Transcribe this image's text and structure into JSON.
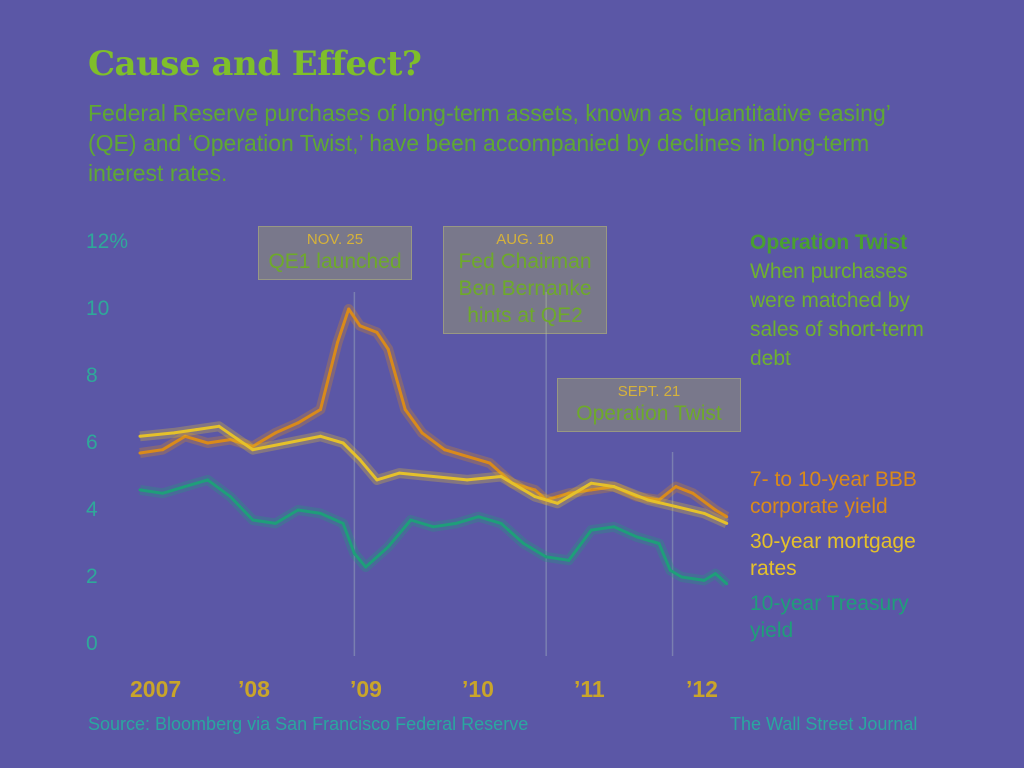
{
  "header": {
    "title": "Cause and Effect?",
    "subtitle": "Federal Reserve purchases of long-term assets, known as ‘quantitative easing’ (QE) and ‘Operation Twist,’ have been accompanied by declines in long-term interest rates."
  },
  "annotations": [
    {
      "date": "NOV. 25",
      "text": "QE1 launched"
    },
    {
      "date": "AUG. 10",
      "text": "Fed Chairman Ben Bernanke hints at QE2"
    },
    {
      "date": "SEPT. 21",
      "text": "Operation Twist"
    }
  ],
  "side_note": {
    "heading": "Operation Twist",
    "text": "When purchases were matched by sales of short-term debt"
  },
  "footer": {
    "source": "Source: Bloomberg via San Francisco Federal Reserve",
    "credit": "The Wall Street Journal"
  },
  "colors": {
    "bbb": "#d98a1a",
    "mortgage": "#e5c12a",
    "treasury": "#1f9e7a"
  },
  "chart_data": {
    "type": "line",
    "title": "Cause and Effect?",
    "ylim": [
      0,
      12
    ],
    "yticks": [
      0,
      2,
      4,
      6,
      8,
      10,
      12
    ],
    "ytick_labels": [
      "0",
      "2",
      "4",
      "6",
      "8",
      "10",
      "12%"
    ],
    "xlim": [
      2007.0,
      2012.3
    ],
    "xticks": [
      2007,
      2008,
      2009,
      2010,
      2011,
      2012
    ],
    "xtick_labels": [
      "2007",
      "’08",
      "’09",
      "’10",
      "’11",
      "’12"
    ],
    "grid": false,
    "legend": "right",
    "events": [
      {
        "x": 2008.9,
        "label": "QE1 launched"
      },
      {
        "x": 2010.6,
        "label": "Fed Chairman Ben Bernanke hints at QE2"
      },
      {
        "x": 2011.72,
        "label": "Operation Twist"
      }
    ],
    "series": [
      {
        "name": "7- to 10-year BBB corporate yield",
        "x": [
          2007.0,
          2007.2,
          2007.4,
          2007.6,
          2007.8,
          2008.0,
          2008.2,
          2008.4,
          2008.6,
          2008.75,
          2008.85,
          2008.95,
          2009.1,
          2009.2,
          2009.35,
          2009.5,
          2009.7,
          2009.9,
          2010.1,
          2010.3,
          2010.5,
          2010.6,
          2010.8,
          2011.0,
          2011.2,
          2011.4,
          2011.6,
          2011.75,
          2011.9,
          2012.1,
          2012.2
        ],
        "values": [
          5.7,
          5.8,
          6.2,
          6.0,
          6.1,
          5.9,
          6.3,
          6.6,
          7.0,
          9.0,
          10.0,
          9.5,
          9.3,
          8.8,
          7.0,
          6.3,
          5.8,
          5.6,
          5.4,
          4.8,
          4.6,
          4.3,
          4.5,
          4.6,
          4.7,
          4.4,
          4.3,
          4.7,
          4.5,
          4.0,
          3.8
        ]
      },
      {
        "name": "30-year mortgage rates",
        "x": [
          2007.0,
          2007.3,
          2007.5,
          2007.7,
          2008.0,
          2008.3,
          2008.6,
          2008.8,
          2008.95,
          2009.1,
          2009.3,
          2009.6,
          2009.9,
          2010.2,
          2010.5,
          2010.7,
          2011.0,
          2011.2,
          2011.5,
          2011.75,
          2012.0,
          2012.2
        ],
        "values": [
          6.2,
          6.3,
          6.4,
          6.5,
          5.8,
          6.0,
          6.2,
          6.0,
          5.5,
          4.9,
          5.1,
          5.0,
          4.9,
          5.0,
          4.4,
          4.2,
          4.8,
          4.7,
          4.3,
          4.1,
          3.9,
          3.6
        ]
      },
      {
        "name": "10-year Treasury yield",
        "x": [
          2007.0,
          2007.2,
          2007.4,
          2007.6,
          2007.8,
          2008.0,
          2008.2,
          2008.4,
          2008.6,
          2008.8,
          2008.9,
          2009.0,
          2009.2,
          2009.4,
          2009.6,
          2009.8,
          2010.0,
          2010.2,
          2010.4,
          2010.6,
          2010.8,
          2011.0,
          2011.2,
          2011.4,
          2011.6,
          2011.7,
          2011.8,
          2012.0,
          2012.1,
          2012.2
        ],
        "values": [
          4.6,
          4.5,
          4.7,
          4.9,
          4.4,
          3.7,
          3.6,
          4.0,
          3.9,
          3.6,
          2.7,
          2.3,
          2.9,
          3.7,
          3.5,
          3.6,
          3.8,
          3.6,
          3.0,
          2.6,
          2.5,
          3.4,
          3.5,
          3.2,
          3.0,
          2.2,
          2.0,
          1.9,
          2.1,
          1.8
        ]
      }
    ]
  }
}
